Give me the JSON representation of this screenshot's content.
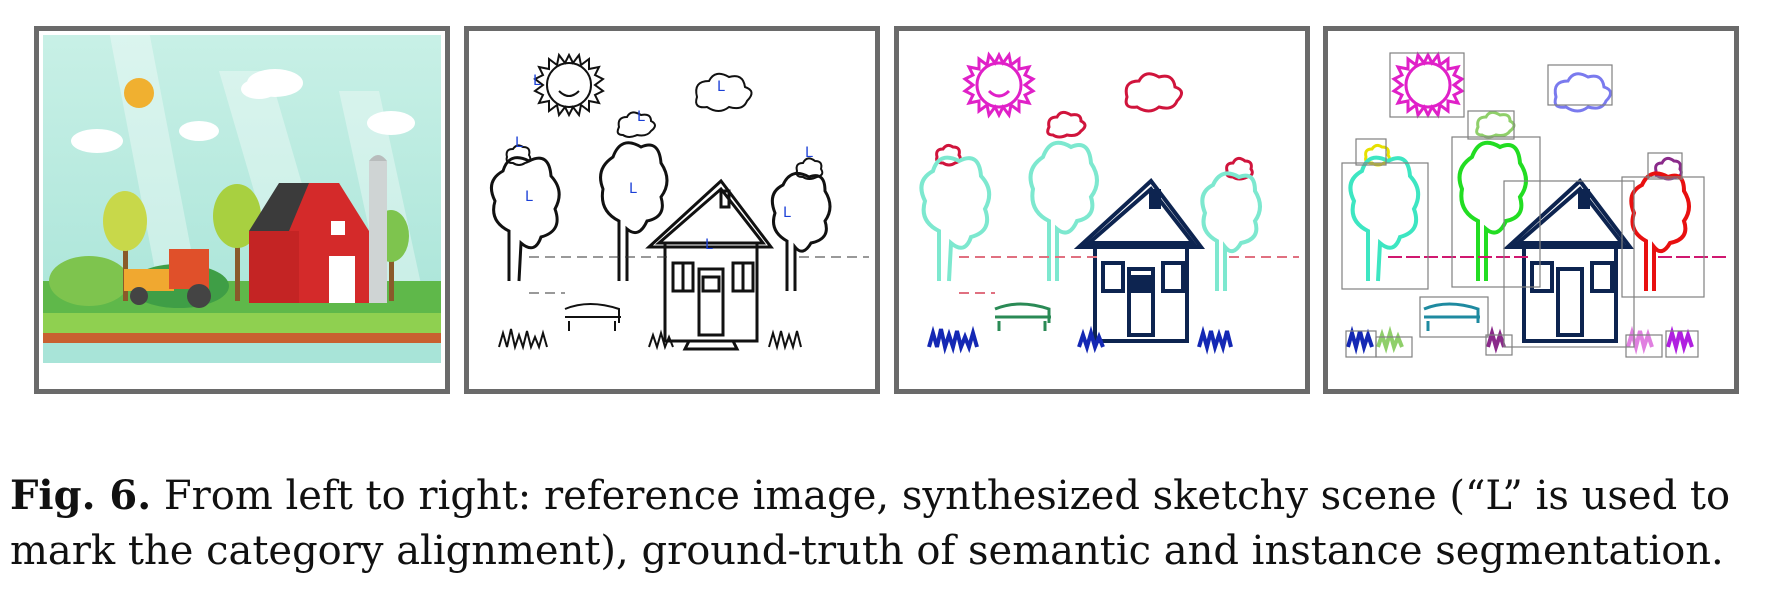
{
  "figure": {
    "label": "Fig. 6.",
    "caption_line1": "From left to right: reference image, synthesized sketchy scene (“L” is used to",
    "caption_line2": "mark the category alignment), ground-truth of semantic and instance segmentation."
  },
  "panels": [
    {
      "name": "reference-image"
    },
    {
      "name": "synthesized-sketchy-scene",
      "alignment_marker": "L"
    },
    {
      "name": "semantic-segmentation-ground-truth"
    },
    {
      "name": "instance-segmentation-ground-truth"
    }
  ],
  "colors": {
    "frame": "#6a6a6a",
    "marker": "#1a3fd6",
    "semantic_sun": "#e020c8",
    "semantic_cloud": "#d0143c",
    "semantic_tree": "#7de8cf",
    "semantic_house": "#0d2450",
    "semantic_grass": "#1428b4",
    "semantic_bench": "#2a8a55",
    "instance_tree_1": "#3de6c2",
    "instance_tree_2": "#22dd22",
    "instance_tree_3": "#e81010",
    "instance_cloud_1": "#e6e000",
    "instance_cloud_2": "#8fcf6a",
    "instance_cloud_3": "#7a7aee",
    "instance_cloud_4": "#8a2a8a",
    "instance_box": "#808080"
  }
}
